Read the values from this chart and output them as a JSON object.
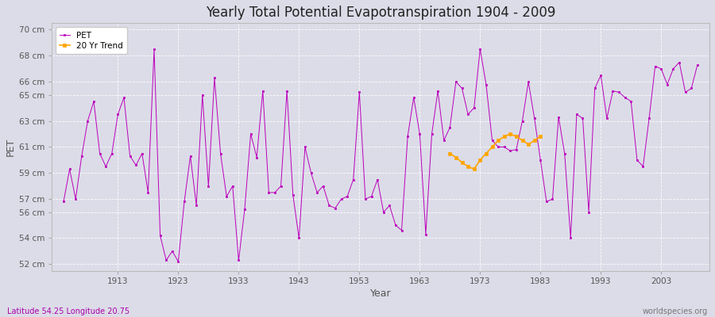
{
  "title": "Yearly Total Potential Evapotranspiration 1904 - 2009",
  "xlabel": "Year",
  "ylabel": "PET",
  "subtitle_left": "Latitude 54.25 Longitude 20.75",
  "subtitle_right": "worldspecies.org",
  "pet_color": "#BB00BB",
  "trend_color": "#FFA500",
  "bg_color": "#DCDCE8",
  "ylim": [
    51.5,
    70.5
  ],
  "yticks": [
    52,
    54,
    56,
    57,
    59,
    61,
    63,
    65,
    66,
    68,
    70
  ],
  "ytick_labels": [
    "52 cm",
    "54 cm",
    "56 cm",
    "57 cm",
    "59 cm",
    "61 cm",
    "63 cm",
    "65 cm",
    "66 cm",
    "68 cm",
    "70 cm"
  ],
  "xticks": [
    1913,
    1923,
    1933,
    1943,
    1953,
    1963,
    1973,
    1983,
    1993,
    2003
  ],
  "xlim": [
    1902,
    2011
  ],
  "years": [
    1904,
    1905,
    1906,
    1907,
    1908,
    1909,
    1910,
    1911,
    1912,
    1913,
    1914,
    1915,
    1916,
    1917,
    1918,
    1919,
    1920,
    1921,
    1922,
    1923,
    1924,
    1925,
    1926,
    1927,
    1928,
    1929,
    1930,
    1931,
    1932,
    1933,
    1934,
    1935,
    1936,
    1937,
    1938,
    1939,
    1940,
    1941,
    1942,
    1943,
    1944,
    1945,
    1946,
    1947,
    1948,
    1949,
    1950,
    1951,
    1952,
    1953,
    1954,
    1955,
    1956,
    1957,
    1958,
    1959,
    1960,
    1961,
    1962,
    1963,
    1964,
    1965,
    1966,
    1967,
    1968,
    1969,
    1970,
    1971,
    1972,
    1973,
    1974,
    1975,
    1976,
    1977,
    1978,
    1979,
    1980,
    1981,
    1982,
    1983,
    1984,
    1985,
    1986,
    1987,
    1988,
    1989,
    1990,
    1991,
    1992,
    1993,
    1994,
    1995,
    1996,
    1997,
    1998,
    1999,
    2000,
    2001,
    2002,
    2003,
    2004,
    2005,
    2006,
    2007,
    2008,
    2009
  ],
  "pet_values": [
    56.8,
    59.3,
    57.0,
    60.3,
    63.0,
    64.5,
    60.5,
    59.5,
    60.5,
    63.5,
    64.8,
    60.3,
    59.6,
    60.5,
    57.5,
    68.5,
    54.2,
    52.3,
    53.0,
    52.2,
    56.8,
    60.3,
    56.5,
    65.0,
    58.0,
    66.3,
    60.5,
    57.2,
    58.0,
    52.3,
    56.2,
    62.0,
    60.2,
    65.3,
    57.5,
    57.5,
    58.0,
    65.3,
    57.3,
    54.0,
    61.0,
    59.0,
    57.5,
    58.0,
    56.5,
    56.3,
    57.0,
    57.2,
    58.5,
    65.2,
    57.0,
    57.2,
    58.5,
    56.0,
    56.5,
    55.0,
    54.6,
    61.8,
    64.8,
    62.0,
    54.3,
    62.0,
    65.3,
    61.5,
    62.5,
    66.0,
    65.5,
    63.5,
    64.0,
    68.5,
    65.8,
    61.5,
    61.0,
    61.0,
    60.7,
    60.8,
    63.0,
    66.0,
    63.2,
    60.0,
    56.8,
    57.0,
    63.3,
    60.5,
    54.0,
    63.5,
    63.2,
    56.0,
    65.5,
    66.5,
    63.2,
    65.3,
    65.2,
    64.8,
    64.5,
    60.0,
    59.5,
    63.2,
    67.2,
    67.0,
    65.8,
    67.0,
    67.5,
    65.2,
    65.5,
    67.3
  ],
  "trend_years": [
    1968,
    1969,
    1970,
    1971,
    1972,
    1973,
    1974,
    1975,
    1976,
    1977,
    1978,
    1979,
    1980,
    1981,
    1982,
    1983
  ],
  "trend_values": [
    60.5,
    60.2,
    59.8,
    59.5,
    59.3,
    60.0,
    60.5,
    61.0,
    61.5,
    61.8,
    62.0,
    61.8,
    61.5,
    61.2,
    61.5,
    61.8
  ]
}
